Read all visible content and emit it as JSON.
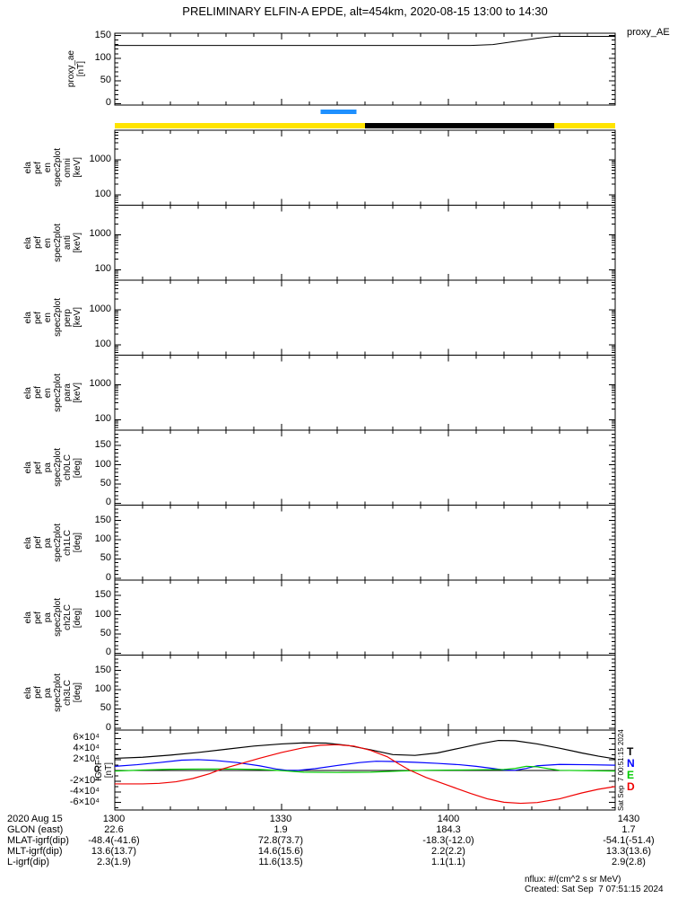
{
  "title": "PRELIMINARY ELFIN-A EPDE, alt=454km, 2020-08-15 13:00 to 14:30",
  "panels": {
    "proxy": {
      "ylabel_words": [
        "proxy_ae",
        "[nT]"
      ],
      "ytick_labels": [
        "150",
        "100",
        "50",
        "0"
      ],
      "legend": "proxy_AE"
    },
    "spec": [
      {
        "ylabel_words": [
          "ela",
          "pef",
          "en",
          "spec2plot",
          "omni",
          "[keV]"
        ],
        "ytick_labels": [
          "1000",
          "100"
        ]
      },
      {
        "ylabel_words": [
          "ela",
          "pef",
          "en",
          "spec2plot",
          "anti",
          "[keV]"
        ],
        "ytick_labels": [
          "1000",
          "100"
        ]
      },
      {
        "ylabel_words": [
          "ela",
          "pef",
          "en",
          "spec2plot",
          "perp",
          "[keV]"
        ],
        "ytick_labels": [
          "1000",
          "100"
        ]
      },
      {
        "ylabel_words": [
          "ela",
          "pef",
          "en",
          "spec2plot",
          "para",
          "[keV]"
        ],
        "ytick_labels": [
          "1000",
          "100"
        ]
      }
    ],
    "pa": [
      {
        "ylabel_words": [
          "ela",
          "pef",
          "pa",
          "spec2plot",
          "ch0LC",
          "[deg]"
        ],
        "ytick_labels": [
          "150",
          "100",
          "50",
          "0"
        ]
      },
      {
        "ylabel_words": [
          "ela",
          "pef",
          "pa",
          "spec2plot",
          "ch1LC",
          "[deg]"
        ],
        "ytick_labels": [
          "150",
          "100",
          "50",
          "0"
        ]
      },
      {
        "ylabel_words": [
          "ela",
          "pef",
          "pa",
          "spec2plot",
          "ch2LC",
          "[deg]"
        ],
        "ytick_labels": [
          "150",
          "100",
          "50",
          "0"
        ]
      },
      {
        "ylabel_words": [
          "ela",
          "pef",
          "pa",
          "spec2plot",
          "ch3LC",
          "[deg]"
        ],
        "ytick_labels": [
          "150",
          "100",
          "50",
          "0"
        ]
      }
    ],
    "igrf": {
      "ylabel_words": [
        "IGRF",
        "[nT]"
      ],
      "ytick_labels": [
        "6×10⁴",
        "4×10⁴",
        "2×10⁴",
        "0",
        "-2×10⁴",
        "-4×10⁴",
        "-6×10⁴"
      ],
      "legend": [
        {
          "label": "T",
          "color": "#000000"
        },
        {
          "label": "N",
          "color": "#0000ff"
        },
        {
          "label": "E",
          "color": "#00cc00"
        },
        {
          "label": "D",
          "color": "#f00000"
        }
      ]
    }
  },
  "footer": {
    "rows": [
      {
        "label": "2020 Aug 15",
        "values": [
          "1300",
          "1330",
          "1400",
          "1430"
        ]
      },
      {
        "label": "GLON (east)",
        "values": [
          "22.6",
          "1.9",
          "184.3",
          "1.7"
        ]
      },
      {
        "label": "MLAT-igrf(dip)",
        "values": [
          "-48.4(-41.6)",
          "72.8(73.7)",
          "-18.3(-12.0)",
          "-54.1(-51.4)"
        ]
      },
      {
        "label": "MLT-igrf(dip)",
        "values": [
          "13.6(13.7)",
          "14.6(15.6)",
          "2.2(2.2)",
          "13.3(13.6)"
        ]
      },
      {
        "label": "L-igrf(dip)",
        "values": [
          "2.3(1.9)",
          "11.6(13.5)",
          "1.1(1.1)",
          "2.9(2.8)"
        ]
      }
    ]
  },
  "notes": {
    "units": "nflux: #/(cm^2 s sr MeV)",
    "created": "Created: Sat Sep  7 07:51:15 2024",
    "side_timestamp": "Sat Sep  7 00:51:15 2024"
  },
  "colors": {
    "yellow_bar": "#ffe400",
    "black_bar": "#000000",
    "blue_bar": "#1e90ff",
    "igrf_T": "#000000",
    "igrf_N": "#0000ff",
    "igrf_E": "#00cc00",
    "igrf_D": "#f00000"
  },
  "chart_data": [
    {
      "type": "line",
      "name": "proxy_AE",
      "ylabel": "proxy_ae [nT]",
      "xlim_minutes_after_1300": [
        0,
        90
      ],
      "xticks_minutes": [
        0,
        30,
        60,
        90
      ],
      "xtick_labels": [
        "1300",
        "1330",
        "1400",
        "1430"
      ],
      "ylim": [
        -3,
        155
      ],
      "yticks": [
        0,
        50,
        100,
        150
      ],
      "x_minutes": [
        0,
        64,
        68,
        72,
        76,
        79,
        90
      ],
      "y_nT": [
        128,
        128,
        130,
        137,
        144,
        148,
        148
      ]
    },
    {
      "type": "bar",
      "name": "science_zone_bar",
      "blue_segment_minutes": [
        37,
        43.5
      ],
      "yellow_segments_minutes": [
        [
          0,
          45
        ],
        [
          79,
          90
        ]
      ],
      "black_segment_minutes": [
        45,
        79
      ]
    },
    {
      "type": "heatmap",
      "name": "energy_and_pitch_angle_spectrograms",
      "panels": [
        "ela_pef_en_spec2plot_omni",
        "ela_pef_en_spec2plot_anti",
        "ela_pef_en_spec2plot_perp",
        "ela_pef_en_spec2plot_para",
        "ela_pef_pa_spec2plot_ch0LC",
        "ela_pef_pa_spec2plot_ch1LC",
        "ela_pef_pa_spec2plot_ch2LC",
        "ela_pef_pa_spec2plot_ch3LC"
      ],
      "energy_axis_keV_ticks": [
        100,
        1000
      ],
      "pitch_angle_deg_ticks": [
        0,
        50,
        100,
        150
      ],
      "values": [],
      "note": "all eight spectrogram panels are blank (no flux data plotted)"
    },
    {
      "type": "line",
      "name": "IGRF",
      "ylabel": "IGRF [nT]",
      "xlim_minutes_after_1300": [
        0,
        90
      ],
      "ylim": [
        -74000,
        76000
      ],
      "yticks": [
        -60000,
        -40000,
        -20000,
        0,
        20000,
        40000,
        60000
      ],
      "legend_position": "right",
      "series": [
        {
          "name": "T",
          "color": "#000000",
          "x_minutes": [
            0,
            5,
            10,
            15,
            20,
            25,
            30,
            34,
            38,
            42,
            46,
            50,
            54,
            58,
            62,
            66,
            69,
            72,
            76,
            80,
            84,
            87,
            90
          ],
          "y_nT": [
            23000,
            25000,
            29000,
            34000,
            40000,
            46000,
            50000,
            52000,
            51500,
            47000,
            39000,
            30000,
            28500,
            33000,
            42000,
            51000,
            56500,
            56000,
            50000,
            42000,
            33000,
            27000,
            22000
          ]
        },
        {
          "name": "N",
          "color": "#0000ff",
          "x_minutes": [
            0,
            4,
            8,
            12,
            15,
            18,
            22,
            26,
            29,
            31,
            33,
            36,
            40,
            44,
            47,
            50,
            54,
            58,
            62,
            65,
            68,
            70,
            72,
            74,
            76,
            80,
            85,
            90
          ],
          "y_nT": [
            8000,
            11000,
            15000,
            19500,
            20500,
            19000,
            15000,
            9000,
            3000,
            500,
            500,
            3500,
            9500,
            15000,
            17500,
            17000,
            15500,
            13500,
            11000,
            8000,
            4000,
            1000,
            500,
            4000,
            9000,
            11500,
            11000,
            10000
          ]
        },
        {
          "name": "E",
          "color": "#00cc00",
          "x_minutes": [
            0,
            5,
            10,
            16,
            22,
            26,
            30,
            34,
            40,
            46,
            51,
            56,
            62,
            66,
            70,
            72,
            74,
            76,
            78,
            80,
            84,
            90
          ],
          "y_nT": [
            -1000,
            1000,
            2500,
            3000,
            2800,
            2000,
            0,
            -3000,
            -3500,
            -3000,
            -1000,
            500,
            1000,
            1500,
            2000,
            4000,
            8000,
            7000,
            3500,
            500,
            0,
            -1000
          ]
        },
        {
          "name": "D",
          "color": "#f00000",
          "x_minutes": [
            0,
            5,
            8,
            11,
            14,
            17,
            19,
            22,
            26,
            30,
            34,
            37,
            40,
            43,
            46,
            49,
            51,
            53,
            56,
            60,
            64,
            67,
            70,
            73,
            76,
            80,
            84,
            87,
            90
          ],
          "y_nT": [
            -25000,
            -25000,
            -24000,
            -21000,
            -15000,
            -6000,
            2000,
            11000,
            23000,
            34000,
            43000,
            47500,
            48500,
            46000,
            38000,
            26000,
            13000,
            1000,
            -13000,
            -28000,
            -43000,
            -53000,
            -59500,
            -61500,
            -60000,
            -53000,
            -42000,
            -35000,
            -30000
          ]
        }
      ]
    }
  ]
}
